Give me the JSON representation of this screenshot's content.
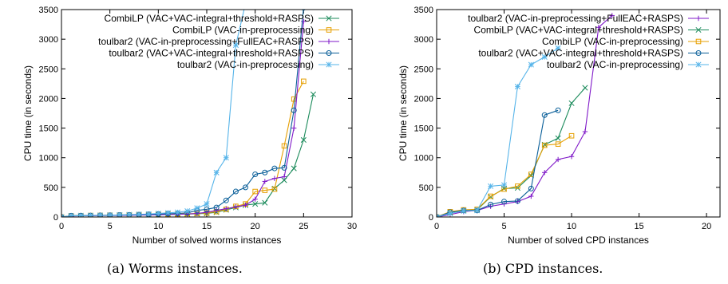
{
  "chart_data": [
    {
      "type": "line",
      "caption": "(a) Worms instances.",
      "xlabel": "Number of solved worms instances",
      "ylabel": "CPU time (in seconds)",
      "xlim": [
        0,
        30
      ],
      "ylim": [
        0,
        3500
      ],
      "xticks": [
        0,
        5,
        10,
        15,
        20,
        25,
        30
      ],
      "yticks": [
        0,
        500,
        1000,
        1500,
        2000,
        2500,
        3000,
        3500
      ],
      "grid": false,
      "legend": "top-right",
      "series": [
        {
          "name": "CombiLP (VAC+VAC-integral+threshold+RASPS)",
          "color": "#1a8a5a",
          "marker": "x",
          "x": [
            0,
            1,
            2,
            3,
            4,
            5,
            6,
            7,
            8,
            9,
            10,
            11,
            12,
            13,
            14,
            15,
            16,
            17,
            18,
            19,
            20,
            21,
            22,
            23,
            24,
            25,
            26
          ],
          "y": [
            0,
            20,
            22,
            25,
            27,
            30,
            32,
            35,
            37,
            40,
            42,
            45,
            48,
            50,
            55,
            60,
            80,
            120,
            160,
            200,
            220,
            240,
            480,
            620,
            820,
            1300,
            2070
          ]
        },
        {
          "name": "CombiLP (VAC-in-preprocessing)",
          "color": "#e69f00",
          "marker": "square",
          "x": [
            0,
            1,
            2,
            3,
            4,
            5,
            6,
            7,
            8,
            9,
            10,
            11,
            12,
            13,
            14,
            15,
            16,
            17,
            18,
            19,
            20,
            21,
            22,
            23,
            24,
            25
          ],
          "y": [
            0,
            20,
            22,
            25,
            27,
            30,
            32,
            35,
            38,
            40,
            43,
            46,
            50,
            55,
            60,
            70,
            90,
            130,
            180,
            220,
            430,
            450,
            470,
            1200,
            1990,
            2290
          ]
        },
        {
          "name": "toulbar2 (VAC-in-preprocessing+FullEAC+RASPS)",
          "color": "#7f18c8",
          "marker": "plus",
          "x": [
            0,
            1,
            2,
            3,
            4,
            5,
            6,
            7,
            8,
            9,
            10,
            11,
            12,
            13,
            14,
            15,
            16,
            17,
            18,
            19,
            20,
            21,
            22,
            23,
            24,
            25
          ],
          "y": [
            0,
            18,
            20,
            22,
            24,
            26,
            28,
            30,
            32,
            35,
            38,
            42,
            45,
            50,
            60,
            80,
            110,
            140,
            170,
            200,
            300,
            600,
            650,
            680,
            1500,
            3300
          ]
        },
        {
          "name": "toulbar2 (VAC+VAC-integral+threshold+RASPS)",
          "color": "#0a5f99",
          "marker": "circle",
          "x": [
            0,
            1,
            2,
            3,
            4,
            5,
            6,
            7,
            8,
            9,
            10,
            11,
            12,
            13,
            14,
            15,
            16,
            17,
            18,
            19,
            20,
            21,
            22,
            23,
            24,
            25
          ],
          "y": [
            0,
            22,
            24,
            26,
            28,
            30,
            33,
            36,
            40,
            45,
            50,
            55,
            60,
            70,
            110,
            130,
            160,
            280,
            430,
            500,
            720,
            750,
            820,
            830,
            1800,
            3530
          ]
        },
        {
          "name": "toulbar2 (VAC-in-preprocessing)",
          "color": "#56b4e9",
          "marker": "star",
          "x": [
            0,
            1,
            2,
            3,
            4,
            5,
            6,
            7,
            8,
            9,
            10,
            11,
            12,
            13,
            14,
            15,
            16,
            17,
            18,
            19
          ],
          "y": [
            0,
            20,
            22,
            25,
            28,
            30,
            35,
            40,
            45,
            50,
            60,
            70,
            80,
            100,
            150,
            220,
            750,
            1000,
            2900,
            3600
          ]
        }
      ]
    },
    {
      "type": "line",
      "caption": "(b) CPD instances.",
      "xlabel": "Number of solved CPD instances",
      "ylabel": "CPU time (in seconds)",
      "xlim": [
        0,
        21
      ],
      "ylim": [
        0,
        3500
      ],
      "xticks": [
        0,
        5,
        10,
        15,
        20
      ],
      "yticks": [
        0,
        500,
        1000,
        1500,
        2000,
        2500,
        3000,
        3500
      ],
      "grid": false,
      "legend": "top-right",
      "series": [
        {
          "name": "toulbar2 (VAC-in-preprocessing+FullEAC+RASPS)",
          "color": "#7f18c8",
          "marker": "plus",
          "x": [
            0,
            1,
            2,
            3,
            4,
            5,
            6,
            7,
            8,
            9,
            10,
            11,
            12,
            13
          ],
          "y": [
            0,
            40,
            90,
            110,
            180,
            220,
            260,
            350,
            750,
            970,
            1020,
            1440,
            3200,
            3400
          ]
        },
        {
          "name": "CombiLP (VAC+VAC-integral+threshold+RASPS)",
          "color": "#1a8a5a",
          "marker": "x",
          "x": [
            0,
            1,
            2,
            3,
            4,
            5,
            6,
            7,
            8,
            9,
            10,
            11
          ],
          "y": [
            0,
            80,
            110,
            120,
            340,
            480,
            490,
            700,
            1220,
            1330,
            1920,
            2180
          ]
        },
        {
          "name": "CombiLP (VAC-in-preprocessing)",
          "color": "#e69f00",
          "marker": "square",
          "x": [
            0,
            1,
            2,
            3,
            4,
            5,
            6,
            7,
            8,
            9,
            10
          ],
          "y": [
            0,
            90,
            120,
            130,
            350,
            470,
            520,
            720,
            1210,
            1230,
            1370
          ]
        },
        {
          "name": "toulbar2 (VAC+VAC-integral+threshold+RASPS)",
          "color": "#0a5f99",
          "marker": "circle",
          "x": [
            0,
            1,
            2,
            3,
            4,
            5,
            6,
            7,
            8,
            9
          ],
          "y": [
            0,
            80,
            110,
            110,
            210,
            260,
            270,
            480,
            1720,
            1800
          ]
        },
        {
          "name": "toulbar2 (VAC-in-preprocessing)",
          "color": "#56b4e9",
          "marker": "star",
          "x": [
            0,
            1,
            2,
            3,
            4,
            5,
            6,
            7,
            8,
            9
          ],
          "y": [
            0,
            60,
            100,
            110,
            520,
            540,
            2200,
            2570,
            2700,
            2850
          ]
        }
      ]
    }
  ]
}
